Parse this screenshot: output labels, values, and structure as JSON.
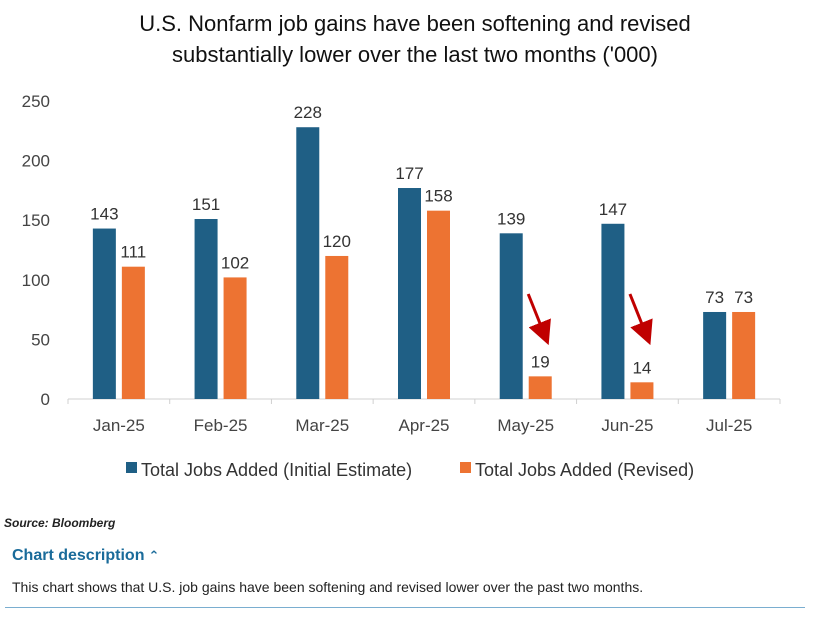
{
  "chart_data": {
    "type": "bar",
    "title": "U.S. Nonfarm job gains have been softening and revised substantially lower over the last two months ('000)",
    "categories": [
      "Jan-25",
      "Feb-25",
      "Mar-25",
      "Apr-25",
      "May-25",
      "Jun-25",
      "Jul-25"
    ],
    "series": [
      {
        "name": "Total Jobs Added (Initial Estimate)",
        "values": [
          143,
          151,
          228,
          177,
          139,
          147,
          73
        ],
        "color": "#1f5f85"
      },
      {
        "name": "Total Jobs Added (Revised)",
        "values": [
          111,
          102,
          120,
          158,
          19,
          14,
          73
        ],
        "color": "#ed7332"
      }
    ],
    "yticks": [
      0,
      50,
      100,
      150,
      200,
      250
    ],
    "ylim": [
      0,
      250
    ],
    "xlabel": "",
    "ylabel": "",
    "legend_position": "bottom",
    "annotations": [
      {
        "type": "arrow",
        "category": "May-25",
        "color": "#c00000"
      },
      {
        "type": "arrow",
        "category": "Jun-25",
        "color": "#c00000"
      }
    ]
  },
  "source": "Source: Bloomberg",
  "description": {
    "toggle_label": "Chart description",
    "text": "This chart shows that U.S. job gains have been softening and revised lower over the past two months."
  }
}
